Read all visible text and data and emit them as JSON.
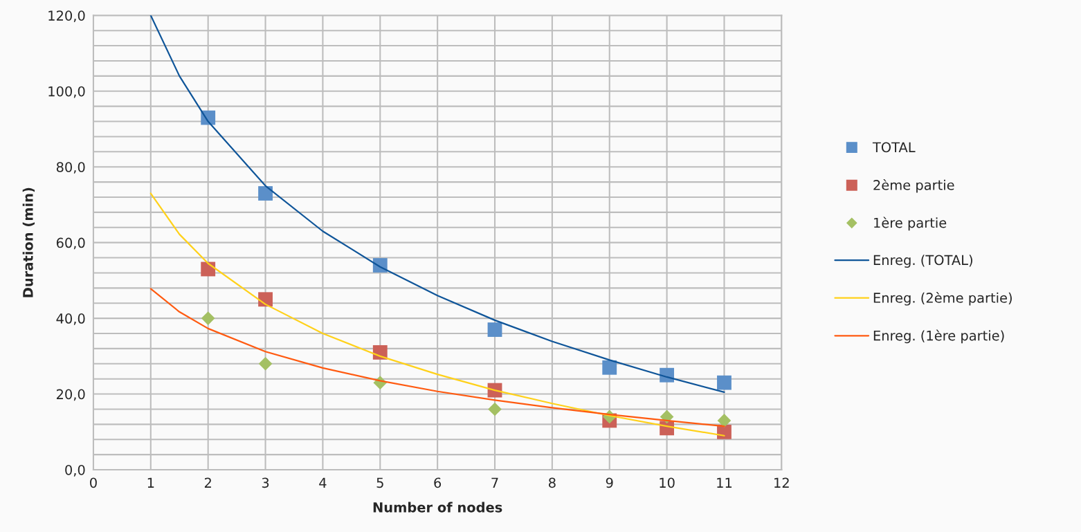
{
  "chart_data": {
    "type": "scatter",
    "xlabel": "Number of nodes",
    "ylabel": "Duration (min)",
    "xlim": [
      0,
      12
    ],
    "xticks": [
      0,
      1,
      2,
      3,
      4,
      5,
      6,
      7,
      8,
      9,
      10,
      11,
      12
    ],
    "ylim": [
      0,
      120
    ],
    "yticks": [
      {
        "value": 0,
        "label": "0,0"
      },
      {
        "value": 4,
        "label": null
      },
      {
        "value": 8,
        "label": null
      },
      {
        "value": 12,
        "label": null
      },
      {
        "value": 16,
        "label": null
      },
      {
        "value": 20,
        "label": "20,0"
      },
      {
        "value": 24,
        "label": null
      },
      {
        "value": 28,
        "label": null
      },
      {
        "value": 32,
        "label": null
      },
      {
        "value": 36,
        "label": null
      },
      {
        "value": 40,
        "label": "40,0"
      },
      {
        "value": 44,
        "label": null
      },
      {
        "value": 48,
        "label": null
      },
      {
        "value": 52,
        "label": null
      },
      {
        "value": 56,
        "label": null
      },
      {
        "value": 60,
        "label": "60,0"
      },
      {
        "value": 64,
        "label": null
      },
      {
        "value": 68,
        "label": null
      },
      {
        "value": 72,
        "label": null
      },
      {
        "value": 76,
        "label": null
      },
      {
        "value": 80,
        "label": "80,0"
      },
      {
        "value": 84,
        "label": null
      },
      {
        "value": 88,
        "label": null
      },
      {
        "value": 92,
        "label": null
      },
      {
        "value": 96,
        "label": null
      },
      {
        "value": 100,
        "label": "100,0"
      },
      {
        "value": 104,
        "label": null
      },
      {
        "value": 108,
        "label": null
      },
      {
        "value": 112,
        "label": null
      },
      {
        "value": 116,
        "label": null
      },
      {
        "value": 120,
        "label": "120,0"
      }
    ],
    "grid": true,
    "legend": "right",
    "series": [
      {
        "name": "TOTAL",
        "marker": "square",
        "color": "#5b8fc9",
        "x": [
          2,
          3,
          5,
          7,
          9,
          10,
          11
        ],
        "values": [
          93,
          73,
          54,
          37,
          27,
          25,
          23
        ]
      },
      {
        "name": "2ème partie",
        "marker": "square",
        "color": "#cc6158",
        "x": [
          2,
          3,
          5,
          7,
          9,
          10,
          11
        ],
        "values": [
          53,
          45,
          31,
          21,
          13,
          11,
          10
        ]
      },
      {
        "name": "1ère partie",
        "marker": "diamond",
        "color": "#a4c063",
        "x": [
          2,
          3,
          5,
          7,
          9,
          10,
          11
        ],
        "values": [
          40,
          28,
          23,
          16,
          14,
          14,
          13
        ]
      },
      {
        "name": "Enreg. (TOTAL)",
        "type": "line",
        "marker": "none",
        "color": "#0f5599",
        "x": [
          1,
          1.5,
          2,
          3,
          4,
          5,
          6,
          7,
          8,
          9,
          10,
          11
        ],
        "values": [
          120,
          104,
          92,
          75,
          63,
          53.6,
          46,
          39.5,
          33.9,
          29,
          24.5,
          20.5
        ]
      },
      {
        "name": "Enreg. (2ème partie)",
        "type": "line",
        "marker": "none",
        "color": "#ffd11a",
        "x": [
          1,
          1.5,
          2,
          3,
          4,
          5,
          6,
          7,
          8,
          9,
          10,
          11
        ],
        "values": [
          73,
          62.2,
          54.5,
          43.7,
          36,
          30,
          25.2,
          21,
          17.5,
          14.3,
          11.5,
          9
        ]
      },
      {
        "name": "Enreg. (1ère partie)",
        "type": "line",
        "marker": "none",
        "color": "#ff5a10",
        "x": [
          1,
          1.5,
          2,
          3,
          4,
          5,
          6,
          7,
          8,
          9,
          10,
          11
        ],
        "values": [
          47.8,
          41.7,
          37.3,
          31.2,
          26.9,
          23.5,
          20.7,
          18.4,
          16.4,
          14.6,
          13,
          11.5
        ]
      }
    ]
  }
}
